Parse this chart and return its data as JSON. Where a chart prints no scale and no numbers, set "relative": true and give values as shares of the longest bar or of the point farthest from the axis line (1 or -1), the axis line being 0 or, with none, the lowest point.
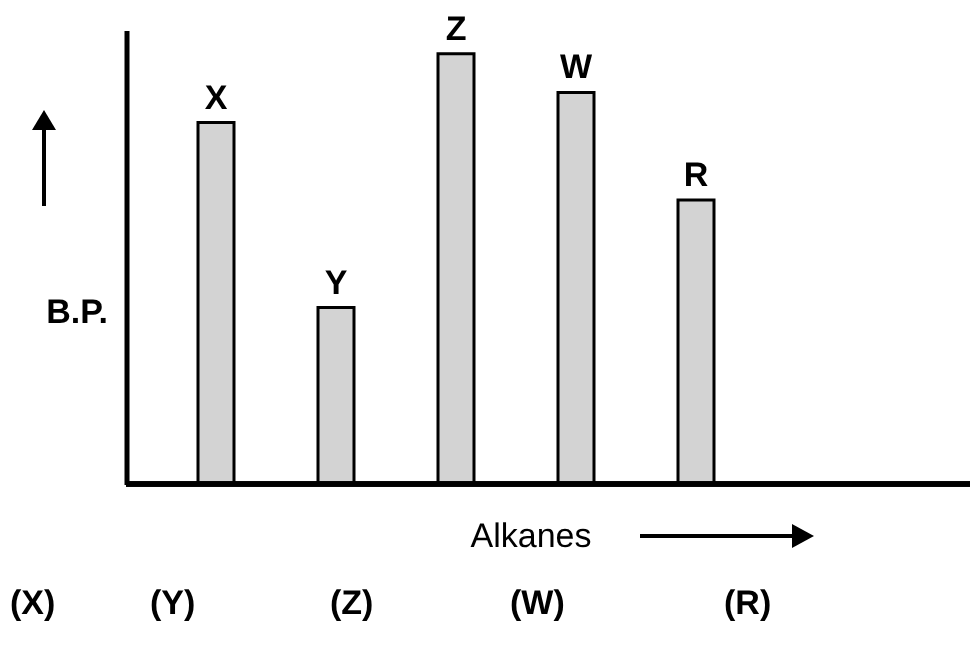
{
  "chart_data": {
    "type": "bar",
    "relative": true,
    "categories": [
      "X",
      "Y",
      "Z",
      "W",
      "R"
    ],
    "values": [
      0.84,
      0.41,
      1,
      0.91,
      0.66
    ],
    "color": "#d3d3d3",
    "xlabel": "Alkanes",
    "ylabel": "B.P.",
    "annotations": [
      "(X)",
      "(Y)",
      "(Z)",
      "(W)",
      "(R)"
    ]
  }
}
